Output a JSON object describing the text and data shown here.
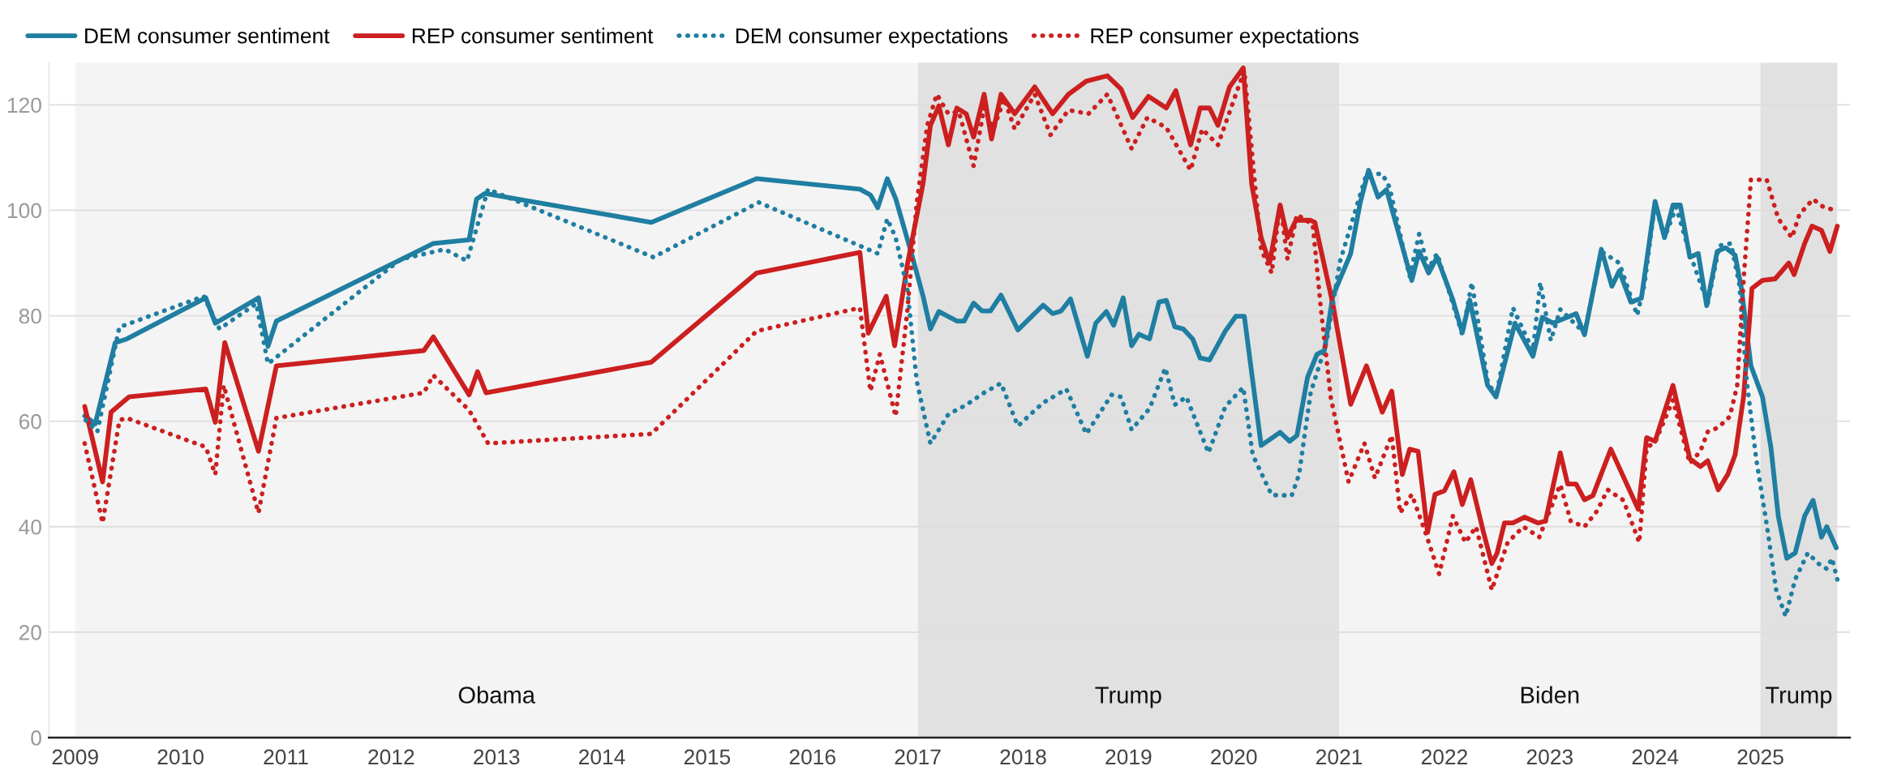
{
  "chart_data": {
    "type": "line",
    "xlim": [
      2008.75,
      2025.85
    ],
    "ylim": [
      0,
      128
    ],
    "xticks": [
      2009,
      2010,
      2011,
      2012,
      2013,
      2014,
      2015,
      2016,
      2017,
      2018,
      2019,
      2020,
      2021,
      2022,
      2023,
      2024,
      2025
    ],
    "yticks": [
      0,
      20,
      40,
      60,
      80,
      100,
      120
    ],
    "grid": "y",
    "legend": "top left",
    "bands": [
      {
        "axis": "x",
        "from": 2009,
        "to": 2017,
        "label": "Obama",
        "color": "#f4f4f4"
      },
      {
        "axis": "x",
        "from": 2017,
        "to": 2021,
        "label": "Trump",
        "color": "#e1e1e1"
      },
      {
        "axis": "x",
        "from": 2021,
        "to": 2025,
        "label": "Biden",
        "color": "#f4f4f4"
      },
      {
        "axis": "x",
        "from": 2025,
        "to": 2025.73,
        "label": "Trump",
        "color": "#e1e1e1"
      }
    ],
    "series": [
      {
        "name": "DEM consumer sentiment",
        "color": "#1f7ea1",
        "line_style": "solid",
        "x": [
          2009.09,
          2009.19,
          2009.38,
          2009.49,
          2010.24,
          2010.33,
          2010.74,
          2010.83,
          2010.91,
          2012.4,
          2012.74,
          2012.81,
          2012.89,
          2014.47,
          2015.47,
          2016.45,
          2016.55,
          2016.62,
          2016.71,
          2016.79,
          2016.94,
          2017.05,
          2017.12,
          2017.2,
          2017.37,
          2017.44,
          2017.53,
          2017.61,
          2017.69,
          2017.79,
          2017.95,
          2018.19,
          2018.28,
          2018.36,
          2018.45,
          2018.61,
          2018.69,
          2018.79,
          2018.86,
          2018.95,
          2019.03,
          2019.1,
          2019.2,
          2019.29,
          2019.36,
          2019.44,
          2019.52,
          2019.61,
          2019.68,
          2019.77,
          2019.92,
          2020.02,
          2020.1,
          2020.26,
          2020.44,
          2020.53,
          2020.6,
          2020.7,
          2020.79,
          2020.86,
          2020.94,
          2021.11,
          2021.2,
          2021.28,
          2021.37,
          2021.45,
          2021.69,
          2021.76,
          2021.85,
          2021.93,
          2022.08,
          2022.17,
          2022.24,
          2022.41,
          2022.49,
          2022.67,
          2022.84,
          2022.93,
          2023.03,
          2023.25,
          2023.33,
          2023.49,
          2023.59,
          2023.66,
          2023.77,
          2023.87,
          2024.0,
          2024.09,
          2024.17,
          2024.24,
          2024.33,
          2024.41,
          2024.49,
          2024.59,
          2024.67,
          2024.76,
          2024.82,
          2024.91,
          2025.02,
          2025.1,
          2025.17,
          2025.25,
          2025.33,
          2025.42,
          2025.5,
          2025.58,
          2025.63,
          2025.72
        ],
        "values": [
          61,
          59.5,
          74.9,
          75.6,
          83.4,
          78.6,
          83.4,
          74.2,
          79,
          93.7,
          94.4,
          102.1,
          103.2,
          97.7,
          106,
          104,
          102.9,
          100.5,
          106,
          102.2,
          91.8,
          83.7,
          77.5,
          80.8,
          79,
          79,
          82.4,
          80.9,
          80.9,
          83.9,
          77.3,
          82,
          80.4,
          80.9,
          83.2,
          72.3,
          78.6,
          80.8,
          78.2,
          83.4,
          74.3,
          76.5,
          75.6,
          82.6,
          82.9,
          77.9,
          77.5,
          75.6,
          72,
          71.6,
          77.1,
          79.9,
          79.9,
          55.4,
          57.9,
          56.2,
          57.3,
          68.3,
          72.7,
          73.4,
          83.7,
          91.8,
          101.4,
          107.6,
          102.5,
          103.9,
          86.7,
          92.2,
          88.1,
          91.1,
          83,
          76.8,
          83,
          66.8,
          64.6,
          78.6,
          72.3,
          79.7,
          78.6,
          80.4,
          76.4,
          92.6,
          85.6,
          88.5,
          82.6,
          83.3,
          101.7,
          94.8,
          101,
          101,
          91.1,
          91.8,
          81.9,
          92.2,
          92.9,
          91.5,
          85.2,
          70.5,
          64.6,
          55,
          42,
          34,
          35,
          42,
          45,
          38,
          40,
          36
        ]
      },
      {
        "name": "REP consumer sentiment",
        "color": "#cc1f1f",
        "line_style": "solid",
        "x": [
          2009.09,
          2009.26,
          2009.34,
          2009.51,
          2010.24,
          2010.33,
          2010.42,
          2010.74,
          2010.91,
          2012.31,
          2012.4,
          2012.74,
          2012.82,
          2012.9,
          2014.47,
          2015.47,
          2016.45,
          2016.53,
          2016.7,
          2016.78,
          2016.9,
          2017.05,
          2017.12,
          2017.2,
          2017.29,
          2017.37,
          2017.46,
          2017.53,
          2017.63,
          2017.7,
          2017.79,
          2017.92,
          2018.11,
          2018.28,
          2018.43,
          2018.6,
          2018.8,
          2018.93,
          2019.04,
          2019.19,
          2019.36,
          2019.45,
          2019.59,
          2019.68,
          2019.77,
          2019.85,
          2019.96,
          2020.09,
          2020.17,
          2020.26,
          2020.34,
          2020.44,
          2020.51,
          2020.59,
          2020.73,
          2020.77,
          2020.94,
          2021.11,
          2021.26,
          2021.41,
          2021.5,
          2021.6,
          2021.67,
          2021.75,
          2021.84,
          2021.91,
          2022.0,
          2022.09,
          2022.17,
          2022.25,
          2022.37,
          2022.45,
          2022.5,
          2022.57,
          2022.65,
          2022.76,
          2022.89,
          2022.96,
          2023.1,
          2023.17,
          2023.25,
          2023.33,
          2023.41,
          2023.58,
          2023.84,
          2023.92,
          2024.0,
          2024.17,
          2024.33,
          2024.43,
          2024.5,
          2024.6,
          2024.69,
          2024.76,
          2024.84,
          2024.92,
          2025.02,
          2025.14,
          2025.27,
          2025.32,
          2025.42,
          2025.49,
          2025.58,
          2025.66,
          2025.73
        ],
        "values": [
          62.8,
          48.5,
          61.7,
          64.6,
          66.1,
          59.8,
          74.9,
          54.3,
          70.5,
          73.4,
          76,
          65,
          69.4,
          65.4,
          71.2,
          88.1,
          92,
          76.7,
          83.7,
          74.3,
          89.6,
          105.1,
          116.1,
          119.8,
          112.4,
          119.4,
          118.3,
          113.9,
          122,
          113.5,
          122,
          118.3,
          123.4,
          118.3,
          122,
          124.5,
          125.5,
          123,
          117.6,
          121.6,
          119.4,
          122.7,
          112.4,
          119.4,
          119.4,
          116.1,
          123.4,
          127,
          105,
          94.8,
          90,
          101,
          94.8,
          98.1,
          98.1,
          97.7,
          82.3,
          63.2,
          70.5,
          61.7,
          65.7,
          49.9,
          54.7,
          54.3,
          38.9,
          46.1,
          46.8,
          50.4,
          44.2,
          48.9,
          39,
          33,
          35,
          40.7,
          40.7,
          41.8,
          40.7,
          41.1,
          54,
          48.1,
          48.1,
          45.1,
          45.9,
          54.7,
          43.3,
          56.9,
          56.2,
          66.8,
          52.9,
          51.4,
          52.5,
          47,
          49.9,
          53.6,
          64.6,
          85.2,
          86.7,
          87,
          90,
          87.8,
          93.7,
          97,
          96.2,
          92.2,
          97
        ]
      },
      {
        "name": "DEM consumer expectations",
        "color": "#1f7ea1",
        "line_style": "dotted",
        "x": [
          2009.1,
          2009.21,
          2009.42,
          2009.47,
          2010.22,
          2010.37,
          2010.72,
          2010.83,
          2012.09,
          2012.51,
          2012.72,
          2012.92,
          2014.49,
          2015.49,
          2016.62,
          2016.71,
          2016.79,
          2016.9,
          2016.99,
          2017.12,
          2017.29,
          2017.46,
          2017.63,
          2017.79,
          2017.95,
          2018.19,
          2018.41,
          2018.6,
          2018.84,
          2018.93,
          2019.03,
          2019.2,
          2019.35,
          2019.44,
          2019.55,
          2019.76,
          2019.92,
          2020.09,
          2020.18,
          2020.36,
          2020.55,
          2020.62,
          2020.73,
          2020.8,
          2020.88,
          2021.01,
          2021.26,
          2021.41,
          2021.48,
          2021.67,
          2021.76,
          2021.85,
          2021.93,
          2022.08,
          2022.17,
          2022.26,
          2022.41,
          2022.49,
          2022.65,
          2022.84,
          2022.91,
          2023.01,
          2023.1,
          2023.33,
          2023.49,
          2023.66,
          2023.83,
          2023.9,
          2024.0,
          2024.09,
          2024.2,
          2024.33,
          2024.5,
          2024.61,
          2024.72,
          2024.8,
          2024.87,
          2024.96,
          2025.06,
          2025.15,
          2025.24,
          2025.33,
          2025.45,
          2025.55,
          2025.63,
          2025.68,
          2025.73
        ],
        "values": [
          60.2,
          58,
          77.9,
          78.2,
          83.7,
          77.5,
          82.3,
          70.9,
          90.7,
          92.6,
          90.4,
          104,
          91.1,
          101.5,
          91.8,
          98.4,
          94.8,
          85.2,
          67.6,
          55.8,
          61.3,
          63.1,
          65.4,
          67.2,
          59.1,
          63.5,
          66.1,
          57.6,
          65,
          64.6,
          58.4,
          62.4,
          70.1,
          63.1,
          64.6,
          54,
          62.8,
          66.4,
          53.6,
          46,
          45.9,
          49.9,
          65.4,
          69.8,
          74.9,
          90.4,
          106.9,
          106.9,
          104.3,
          87.4,
          95.5,
          88.9,
          91.8,
          82.3,
          76.4,
          86.3,
          67.6,
          64.6,
          81.5,
          73.4,
          86.3,
          75.3,
          81.2,
          76.7,
          92.2,
          90,
          80.1,
          86,
          101.4,
          94.8,
          100.6,
          91.8,
          82.3,
          93.3,
          93.7,
          86,
          67.6,
          52.9,
          40.4,
          28,
          23,
          30,
          35,
          33,
          32,
          34,
          30
        ]
      },
      {
        "name": "REP consumer expectations",
        "color": "#cc1f1f",
        "line_style": "dotted",
        "x": [
          2009.09,
          2009.26,
          2009.42,
          2009.49,
          2010.24,
          2010.33,
          2010.41,
          2010.74,
          2010.91,
          2012.31,
          2012.4,
          2012.74,
          2012.92,
          2014.47,
          2015.47,
          2016.45,
          2016.55,
          2016.64,
          2016.79,
          2016.9,
          2016.99,
          2017.09,
          2017.18,
          2017.29,
          2017.39,
          2017.53,
          2017.63,
          2017.72,
          2017.82,
          2017.92,
          2018.11,
          2018.26,
          2018.43,
          2018.62,
          2018.8,
          2019.03,
          2019.18,
          2019.36,
          2019.59,
          2019.7,
          2019.85,
          2020.02,
          2020.1,
          2020.26,
          2020.36,
          2020.44,
          2020.51,
          2020.6,
          2020.75,
          2020.83,
          2020.92,
          2021.09,
          2021.24,
          2021.34,
          2021.5,
          2021.58,
          2021.69,
          2021.82,
          2021.95,
          2022.08,
          2022.2,
          2022.3,
          2022.45,
          2022.6,
          2022.75,
          2022.9,
          2023.1,
          2023.2,
          2023.33,
          2023.45,
          2023.55,
          2023.7,
          2023.85,
          2023.92,
          2024.0,
          2024.17,
          2024.33,
          2024.43,
          2024.5,
          2024.6,
          2024.71,
          2024.78,
          2024.84,
          2024.91,
          2025.06,
          2025.17,
          2025.3,
          2025.37,
          2025.5,
          2025.6,
          2025.73
        ],
        "values": [
          55.8,
          40.7,
          60.2,
          60.6,
          55.1,
          49.9,
          66.8,
          42.6,
          60.6,
          65.4,
          68.7,
          62.1,
          55.8,
          57.6,
          77.1,
          81.5,
          65.7,
          72.7,
          60.9,
          80.8,
          101.4,
          116.1,
          122,
          118.3,
          118.7,
          108.4,
          119.4,
          115.4,
          121.2,
          115.4,
          122,
          114.3,
          119,
          118.3,
          122,
          111.7,
          117.6,
          115.7,
          107.6,
          115.4,
          112.4,
          122,
          126.5,
          92.6,
          88.1,
          101.4,
          90.7,
          99.2,
          97.3,
          80.8,
          64.6,
          48.5,
          55.8,
          49.2,
          57.3,
          42.6,
          46.1,
          38.9,
          31,
          42,
          37,
          40,
          28,
          37,
          40,
          38,
          48,
          41,
          40,
          43,
          47,
          45,
          37,
          55,
          56,
          64,
          52,
          54.3,
          58,
          58.8,
          60.9,
          66.8,
          86.7,
          105.8,
          105.8,
          98.4,
          94.8,
          99.2,
          102.1,
          100.6,
          99.9
        ]
      }
    ]
  }
}
